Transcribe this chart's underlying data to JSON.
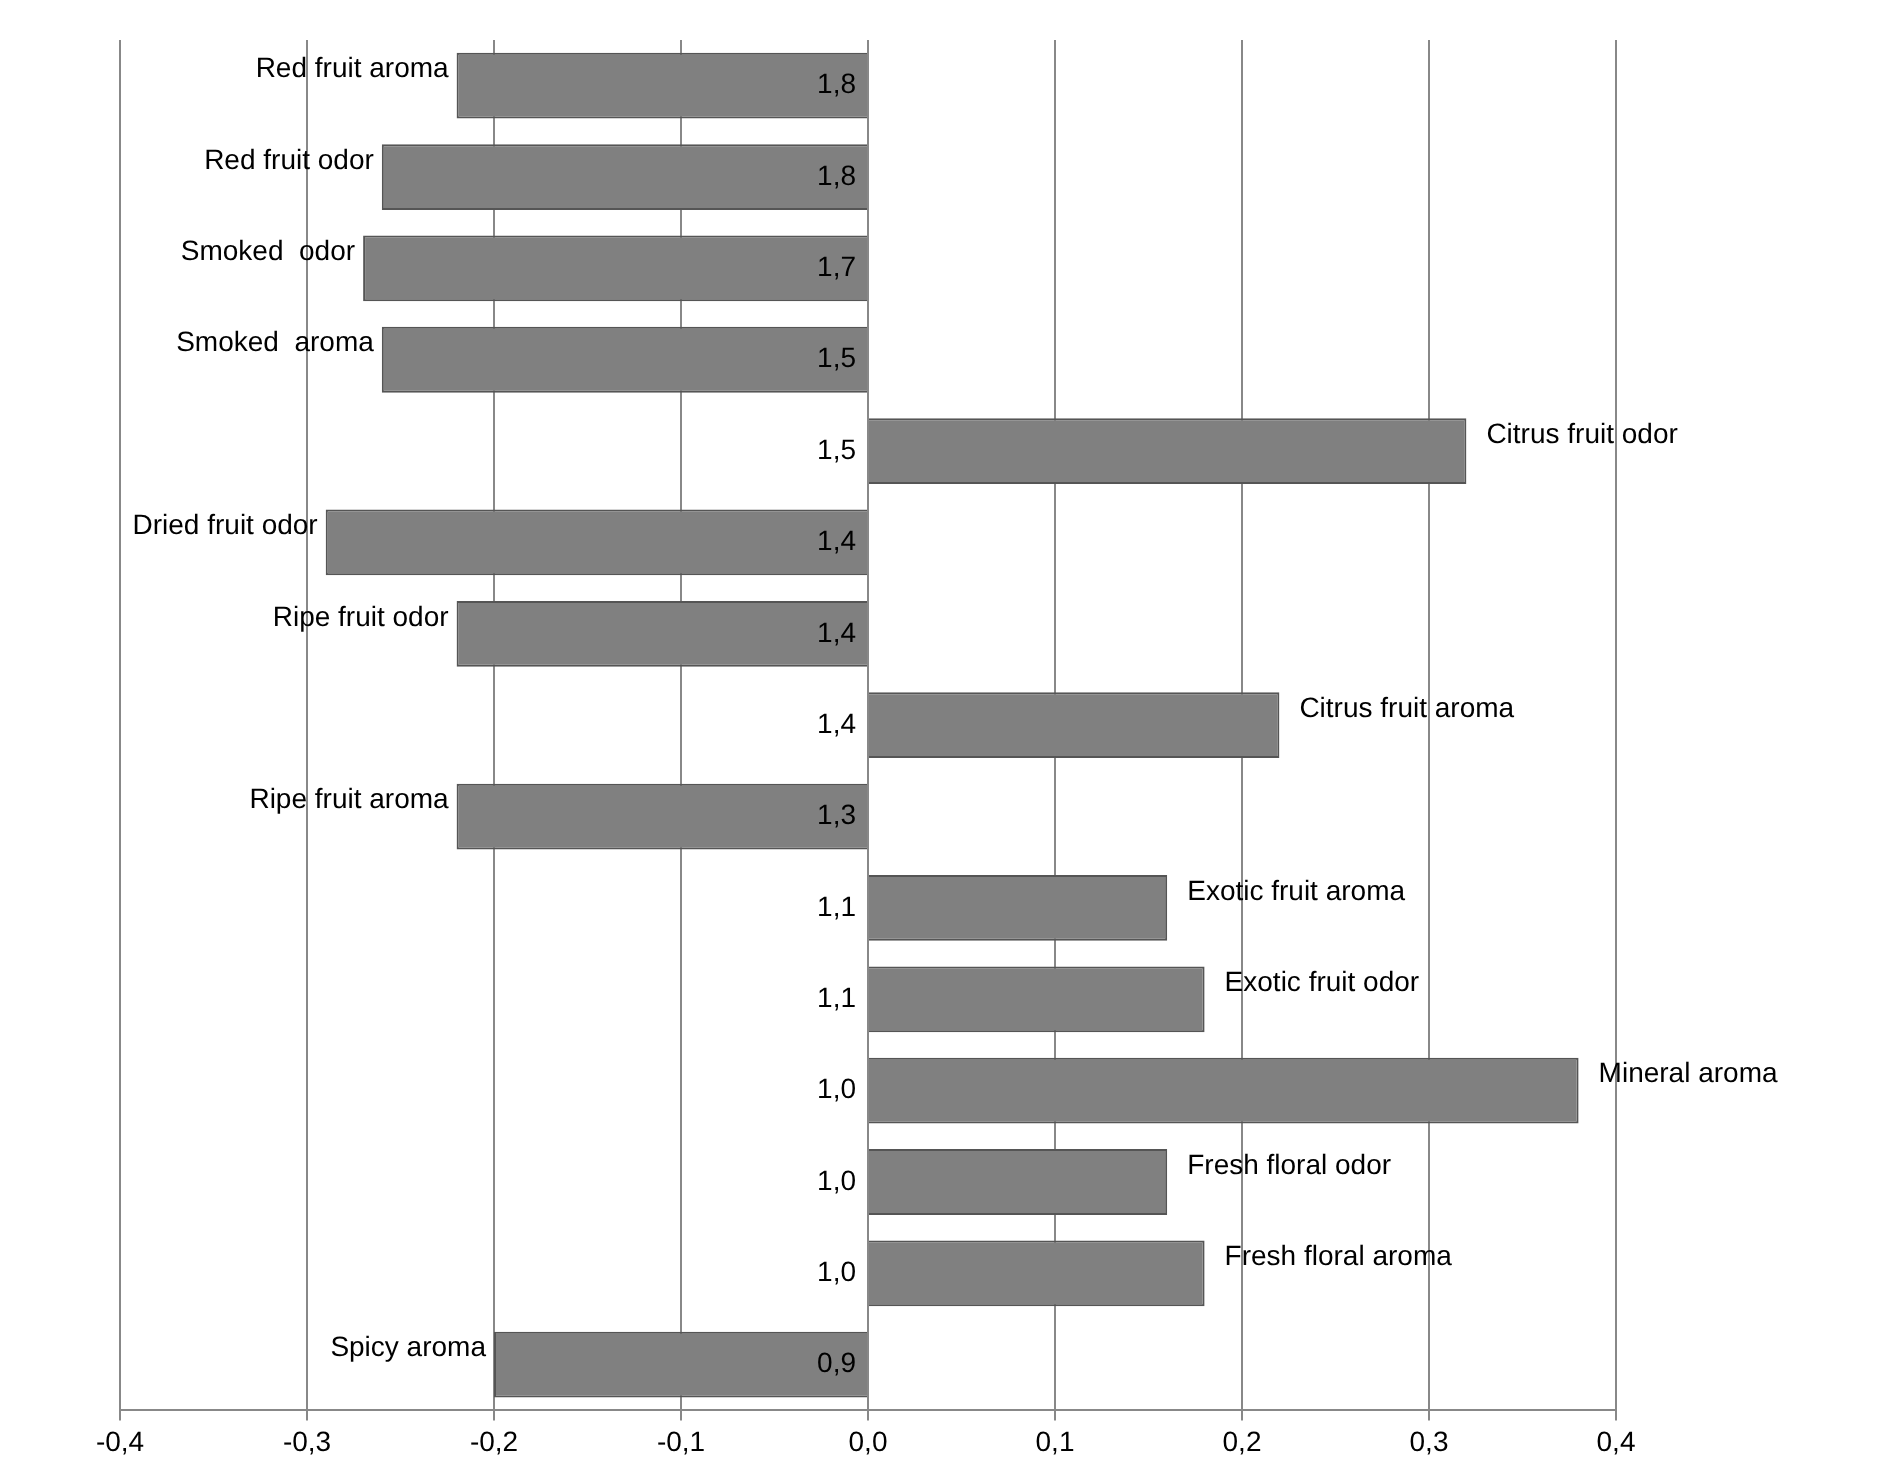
{
  "chart_data": {
    "type": "bar",
    "orientation": "horizontal",
    "categories": [
      "Red fruit aroma",
      "Red fruit odor",
      "Smoked  odor",
      "Smoked  aroma",
      "Citrus fruit odor",
      "Dried fruit odor",
      "Ripe fruit odor",
      "Citrus fruit aroma",
      "Ripe fruit aroma",
      "Exotic fruit aroma",
      "Exotic fruit odor",
      "Mineral aroma",
      "Fresh floral odor",
      "Fresh floral aroma",
      "Spicy aroma"
    ],
    "values": [
      -0.22,
      -0.26,
      -0.27,
      -0.26,
      0.32,
      -0.29,
      -0.22,
      0.22,
      -0.22,
      0.16,
      0.18,
      0.38,
      0.16,
      0.18,
      -0.2
    ],
    "color": "#808080",
    "xlim": [
      -0.4,
      0.4
    ],
    "xticks": [
      {
        "value": -0.4,
        "label": "-0,4"
      },
      {
        "value": -0.3,
        "label": "-0,3"
      },
      {
        "value": -0.2,
        "label": "-0,2"
      },
      {
        "value": -0.1,
        "label": "-0,1"
      },
      {
        "value": 0,
        "label": "0,0"
      },
      {
        "value": 0.1,
        "label": "0,1"
      },
      {
        "value": 0.2,
        "label": "0,2"
      },
      {
        "value": 0.3,
        "label": "0,3"
      },
      {
        "value": 0.4,
        "label": "0,4"
      }
    ],
    "grid": "x",
    "legend": false,
    "annotations": [
      "1,8",
      "1,8",
      "1,7",
      "1,5",
      "1,5",
      "1,4",
      "1,4",
      "1,4",
      "1,3",
      "1,1",
      "1,1",
      "1,0",
      "1,0",
      "1,0",
      "0,9"
    ]
  }
}
